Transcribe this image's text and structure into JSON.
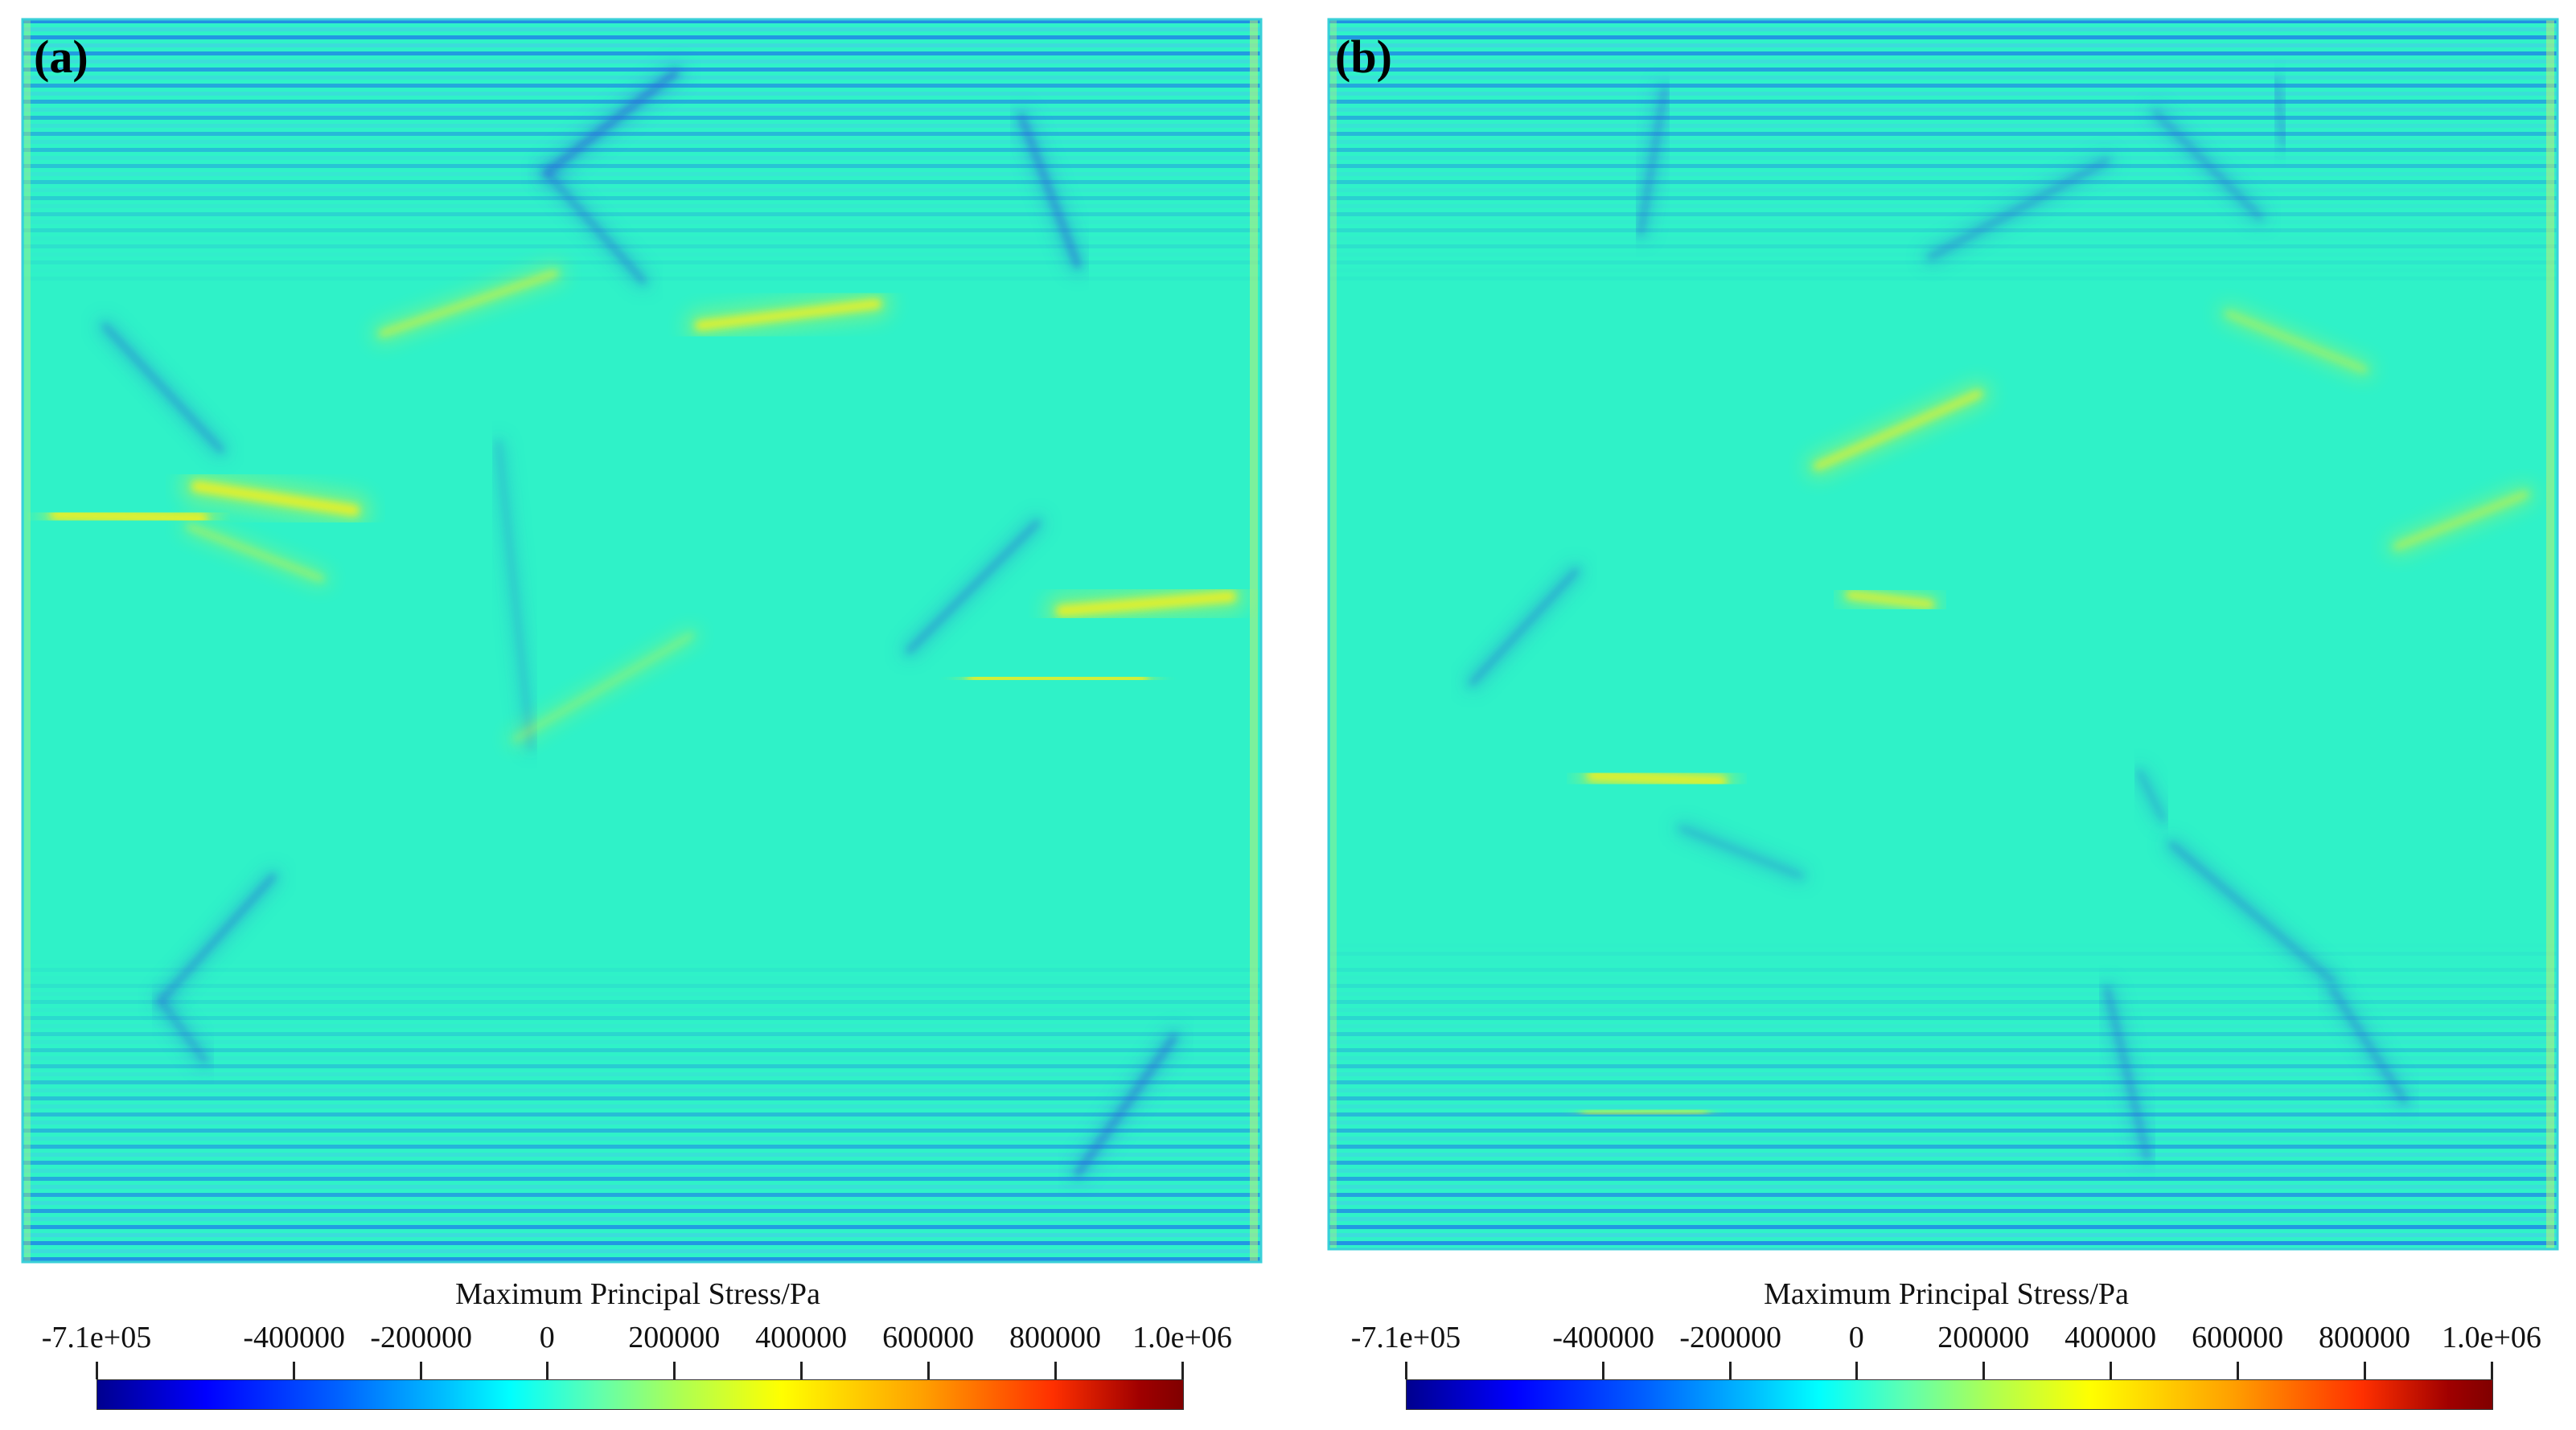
{
  "panels": [
    {
      "label": "(a)",
      "colorbar": {
        "title": "Maximum Principal Stress/Pa",
        "ticks": [
          "-7.1e+05",
          "-400000",
          "-200000",
          "0",
          "200000",
          "400000",
          "600000",
          "800000",
          "1.0e+06"
        ]
      }
    },
    {
      "label": "(b)",
      "colorbar": {
        "title": "Maximum Principal Stress/Pa",
        "ticks": [
          "-7.1e+05",
          "-400000",
          "-200000",
          "0",
          "200000",
          "400000",
          "600000",
          "800000",
          "1.0e+06"
        ]
      }
    }
  ],
  "colors": {
    "field_background": "#2ff2c8",
    "stripe_dark": "#1f7fe8",
    "stripe_light": "#3fd6e0",
    "tension_band": "#f0f020",
    "compression_band": "#2a6fd8"
  }
}
